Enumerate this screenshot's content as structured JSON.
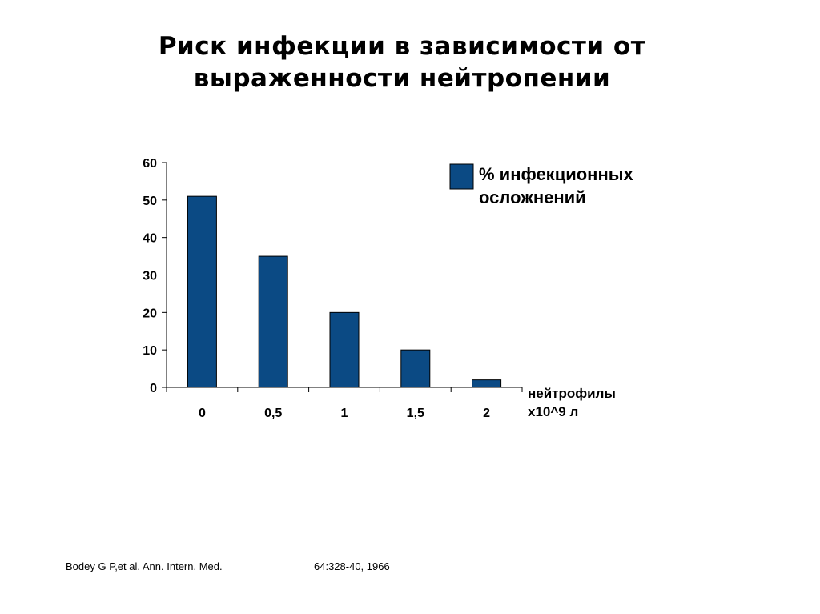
{
  "title": {
    "line1": "Риск инфекции в зависимости от",
    "line2": "выраженности нейтропении"
  },
  "chart_data": {
    "type": "bar",
    "categories": [
      "0",
      "0,5",
      "1",
      "1,5",
      "2"
    ],
    "series": [
      {
        "name": "% инфекционных осложнений",
        "values": [
          51,
          35,
          20,
          10,
          2
        ]
      }
    ],
    "legend_lines": [
      "% инфекционных",
      "осложнений"
    ],
    "legend_position": "top-right",
    "xlabel_lines": [
      "нейтрофилы",
      "х10^9 л"
    ],
    "ylabel": "",
    "ylim": [
      0,
      60
    ],
    "yticks": [
      "0",
      "10",
      "20",
      "30",
      "40",
      "50",
      "60"
    ],
    "grid": false,
    "color": "#0B4A84"
  },
  "footer": {
    "citation": "Bodey G P,et al. Ann. Intern. Med.",
    "reference": "64:328-40, 1966"
  }
}
